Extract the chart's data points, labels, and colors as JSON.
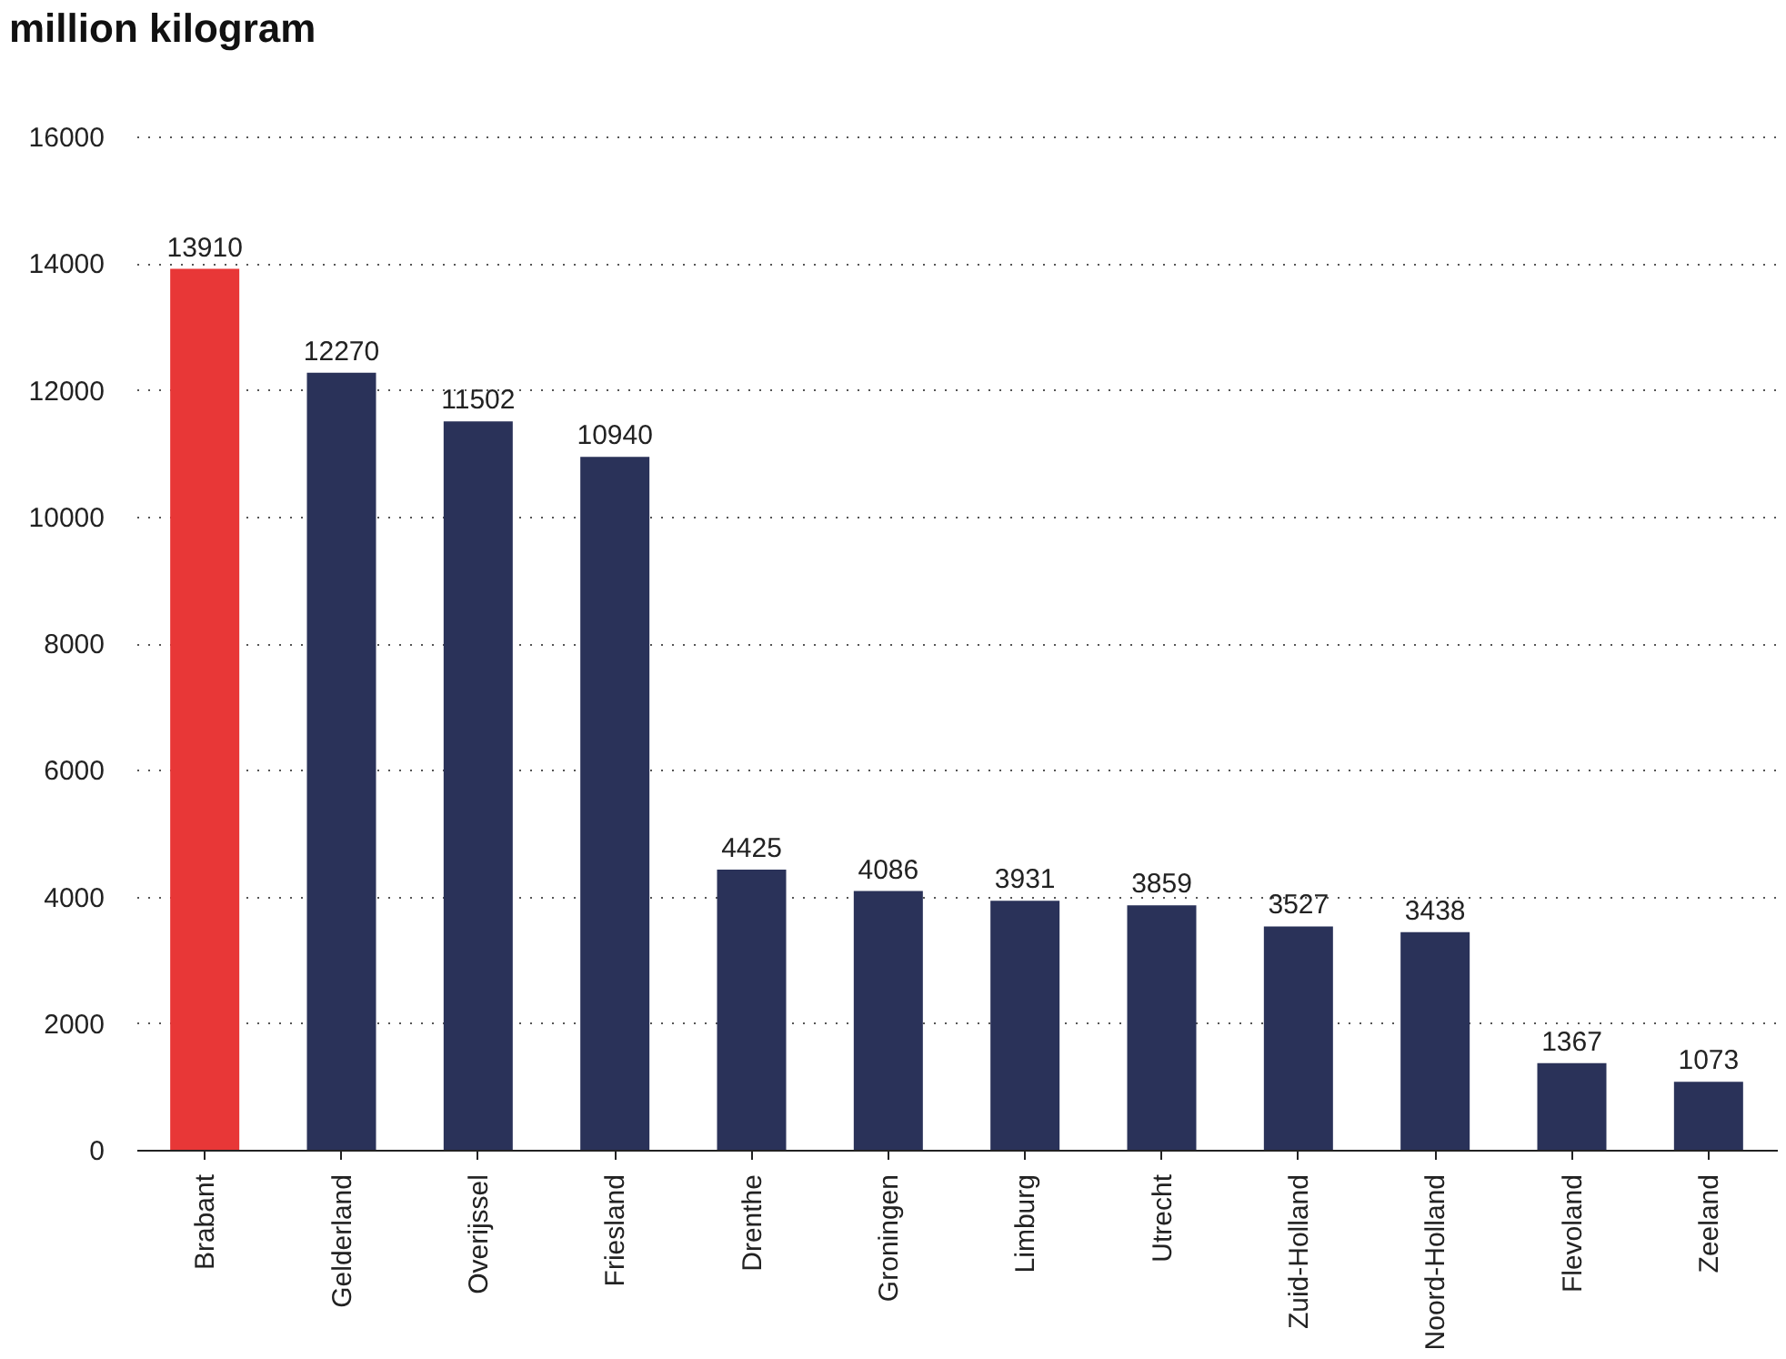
{
  "chart_data": {
    "type": "bar",
    "title": "million kilogram",
    "categories": [
      "Brabant",
      "Gelderland",
      "Overijssel",
      "Friesland",
      "Drenthe",
      "Groningen",
      "Limburg",
      "Utrecht",
      "Zuid-Holland",
      "Noord-Holland",
      "Flevoland",
      "Zeeland"
    ],
    "values": [
      13910,
      12270,
      11502,
      10940,
      4425,
      4086,
      3931,
      3859,
      3527,
      3438,
      1367,
      1073
    ],
    "colors": [
      "#e83737",
      "#2a3259",
      "#2a3259",
      "#2a3259",
      "#2a3259",
      "#2a3259",
      "#2a3259",
      "#2a3259",
      "#2a3259",
      "#2a3259",
      "#2a3259",
      "#2a3259"
    ],
    "ylim": [
      0,
      16000
    ],
    "yticks": [
      0,
      2000,
      4000,
      6000,
      8000,
      10000,
      12000,
      14000,
      16000
    ],
    "grid": "y",
    "data_labels": true
  }
}
